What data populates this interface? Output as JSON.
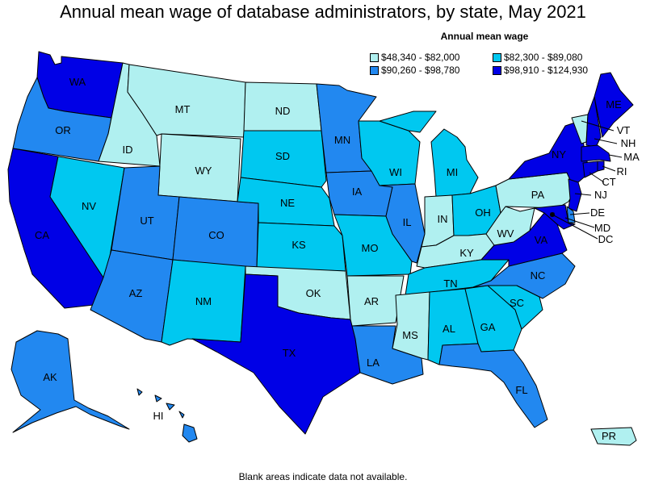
{
  "title": "Annual mean wage of database administrators, by state, May 2021",
  "legend": {
    "title": "Annual mean wage",
    "items": [
      {
        "label": "$48,340 - $82,000",
        "color": "#b0f0f0"
      },
      {
        "label": "$82,300 - $89,080",
        "color": "#00c8f0"
      },
      {
        "label": "$90,260 - $98,780",
        "color": "#2288f0"
      },
      {
        "label": "$98,910 - $124,930",
        "color": "#0000e6"
      }
    ]
  },
  "footnote": "Blank areas indicate data not available.",
  "states": [
    {
      "abbr": "WA",
      "tier": 3
    },
    {
      "abbr": "OR",
      "tier": 2
    },
    {
      "abbr": "CA",
      "tier": 3
    },
    {
      "abbr": "ID",
      "tier": 0
    },
    {
      "abbr": "NV",
      "tier": 1
    },
    {
      "abbr": "MT",
      "tier": 0
    },
    {
      "abbr": "WY",
      "tier": 0
    },
    {
      "abbr": "UT",
      "tier": 2
    },
    {
      "abbr": "AZ",
      "tier": 2
    },
    {
      "abbr": "CO",
      "tier": 2
    },
    {
      "abbr": "NM",
      "tier": 1
    },
    {
      "abbr": "ND",
      "tier": 0
    },
    {
      "abbr": "SD",
      "tier": 1
    },
    {
      "abbr": "NE",
      "tier": 1
    },
    {
      "abbr": "KS",
      "tier": 1
    },
    {
      "abbr": "OK",
      "tier": 0
    },
    {
      "abbr": "TX",
      "tier": 3
    },
    {
      "abbr": "MN",
      "tier": 2
    },
    {
      "abbr": "IA",
      "tier": 2
    },
    {
      "abbr": "MO",
      "tier": 1
    },
    {
      "abbr": "AR",
      "tier": 0
    },
    {
      "abbr": "LA",
      "tier": 2
    },
    {
      "abbr": "WI",
      "tier": 1
    },
    {
      "abbr": "IL",
      "tier": 2
    },
    {
      "abbr": "MI",
      "tier": 1
    },
    {
      "abbr": "IN",
      "tier": 0
    },
    {
      "abbr": "OH",
      "tier": 1
    },
    {
      "abbr": "KY",
      "tier": 0
    },
    {
      "abbr": "TN",
      "tier": 1
    },
    {
      "abbr": "MS",
      "tier": 0
    },
    {
      "abbr": "AL",
      "tier": 1
    },
    {
      "abbr": "GA",
      "tier": 1
    },
    {
      "abbr": "FL",
      "tier": 2
    },
    {
      "abbr": "SC",
      "tier": 1
    },
    {
      "abbr": "NC",
      "tier": 2
    },
    {
      "abbr": "VA",
      "tier": 3
    },
    {
      "abbr": "WV",
      "tier": 0
    },
    {
      "abbr": "PA",
      "tier": 0
    },
    {
      "abbr": "NY",
      "tier": 3
    },
    {
      "abbr": "VT",
      "tier": 0
    },
    {
      "abbr": "NH",
      "tier": 3
    },
    {
      "abbr": "ME",
      "tier": 3
    },
    {
      "abbr": "MA",
      "tier": 3
    },
    {
      "abbr": "RI",
      "tier": 3
    },
    {
      "abbr": "CT",
      "tier": 3
    },
    {
      "abbr": "NJ",
      "tier": 3
    },
    {
      "abbr": "DE",
      "tier": 2
    },
    {
      "abbr": "MD",
      "tier": 3
    },
    {
      "abbr": "DC",
      "tier": 3
    },
    {
      "abbr": "AK",
      "tier": 2
    },
    {
      "abbr": "HI",
      "tier": 2
    },
    {
      "abbr": "PR",
      "tier": 0
    }
  ]
}
